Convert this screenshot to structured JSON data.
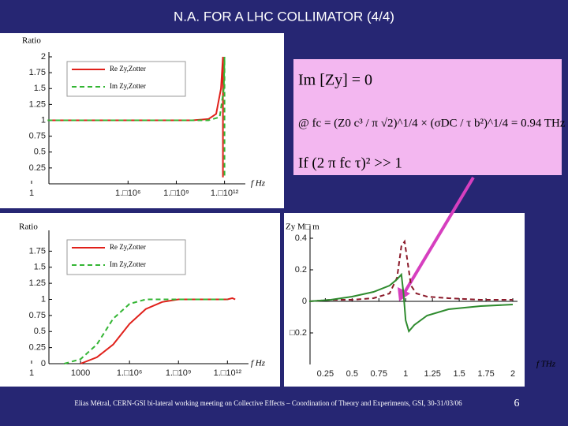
{
  "title": "N.A. FOR A LHC COLLIMATOR (4/4)",
  "formula": {
    "line1": "Im [Zy] = 0",
    "line2": "@  fc = (Z0 c³ / π √2)^1/4 × (σDC / τ b²)^1/4 = 0.94 THz",
    "line3": "If (2 π fc τ)² >> 1"
  },
  "footer": "Elias Métral, CERN-GSI bi-lateral working meeting on Collective Effects – Coordination of Theory and Experiments, GSI, 30-31/03/06",
  "page_number": "6",
  "chart_data": [
    {
      "type": "line",
      "y_label": "Ratio",
      "x_label": "f  Hz",
      "xscale": "log",
      "legend": "upper left",
      "xlim": [
        1,
        10000000000000.0
      ],
      "ylim": [
        0,
        2
      ],
      "xticks": [
        1,
        {
          "value": 1000000.0,
          "label": "1.□10⁶"
        },
        {
          "value": 1000000000.0,
          "label": "1.□10⁹"
        },
        {
          "value": 1000000000000.0,
          "label": "1.□10¹²"
        }
      ],
      "yticks": [
        0.25,
        0.5,
        0.75,
        1,
        1.25,
        1.5,
        1.75,
        2
      ],
      "series": [
        {
          "name": "Re Zy,Zotter",
          "color": "#e0201a",
          "style": "solid",
          "x": [
            10,
            1000,
            1000000.0,
            1000000000.0,
            10000000000.0,
            100000000000.0,
            300000000000.0,
            600000000000.0,
            800000000000.0,
            800000000000.0
          ],
          "values": [
            1,
            1,
            1,
            1,
            1,
            1.02,
            1.1,
            1.5,
            2,
            0.1
          ]
        },
        {
          "name": "Im Zy,Zotter",
          "color": "#33b533",
          "style": "dashed",
          "x": [
            10,
            1000,
            1000000.0,
            1000000000.0,
            10000000000.0,
            100000000000.0,
            500000000000.0,
            900000000000.0,
            1000000000000.0,
            1000000000000.0
          ],
          "values": [
            1,
            1,
            1,
            1,
            1,
            1,
            1.05,
            1.5,
            2,
            0.1
          ]
        }
      ]
    },
    {
      "type": "line",
      "y_label": "Ratio",
      "x_label": "f  Hz",
      "xscale": "log",
      "legend": "upper left",
      "xlim": [
        1,
        10000000000000.0
      ],
      "ylim": [
        0,
        2
      ],
      "xticks": [
        1,
        1000,
        {
          "value": 1000000.0,
          "label": "1.□10⁶"
        },
        {
          "value": 1000000000.0,
          "label": "1.□10⁹"
        },
        {
          "value": 1000000000000.0,
          "label": "1.□10¹²"
        }
      ],
      "yticks": [
        0,
        0.25,
        0.5,
        0.75,
        1,
        1.25,
        1.5,
        1.75
      ],
      "series": [
        {
          "name": "Re Zy,Zotter",
          "color": "#e0201a",
          "style": "solid",
          "x": [
            1000,
            10000.0,
            100000.0,
            1000000.0,
            10000000.0,
            100000000.0,
            1000000000.0,
            100000000000.0,
            1000000000000.0,
            2000000000000.0,
            3000000000000.0
          ],
          "values": [
            0,
            0.1,
            0.3,
            0.62,
            0.85,
            0.96,
            1,
            1,
            1,
            1.02,
            1
          ]
        },
        {
          "name": "Im Zy,Zotter",
          "color": "#33b533",
          "style": "dashed",
          "x": [
            100,
            1000,
            10000.0,
            100000.0,
            1000000.0,
            10000000.0,
            100000000.0,
            1000000000000.0
          ],
          "values": [
            0,
            0.07,
            0.3,
            0.7,
            0.93,
            1,
            1,
            1
          ]
        }
      ]
    },
    {
      "type": "line",
      "y_label": "Zy  M□ m",
      "x_label": "f  THz",
      "xlim": [
        0.1,
        2
      ],
      "ylim": [
        -0.4,
        0.45
      ],
      "xticks": [
        0.25,
        0.5,
        0.75,
        1,
        1.25,
        1.5,
        1.75,
        2
      ],
      "yticks": [
        {
          "value": -0.2,
          "label": "□0.2"
        },
        0,
        0.2,
        0.4
      ],
      "series": [
        {
          "color": "#8b1a2a",
          "style": "dashed",
          "x": [
            0.1,
            0.3,
            0.5,
            0.7,
            0.85,
            0.92,
            0.96,
            0.99,
            1.05,
            1.1,
            1.2,
            1.4,
            1.7,
            2
          ],
          "values": [
            0,
            0.01,
            0.01,
            0.02,
            0.05,
            0.15,
            0.35,
            0.38,
            0.1,
            0.05,
            0.03,
            0.02,
            0.01,
            0.01
          ]
        },
        {
          "color": "#2e8b2e",
          "style": "solid",
          "x": [
            0.1,
            0.3,
            0.5,
            0.7,
            0.85,
            0.92,
            0.96,
            0.98,
            1,
            1.03,
            1.08,
            1.2,
            1.4,
            1.7,
            2
          ],
          "values": [
            0,
            0.01,
            0.03,
            0.06,
            0.1,
            0.14,
            0.17,
            0.05,
            -0.12,
            -0.19,
            -0.15,
            -0.09,
            -0.05,
            -0.03,
            -0.02
          ]
        }
      ]
    }
  ]
}
